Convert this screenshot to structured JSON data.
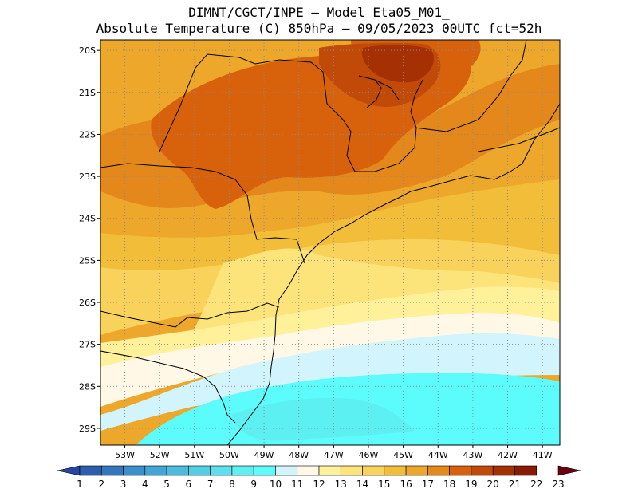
{
  "header": {
    "line1": "DIMNT/CGCT/INPE –  Model Eta05_M01_",
    "line2": "Absolute Temperature (C) 850hPa –  09/05/2023 00UTC fct=52h"
  },
  "map": {
    "lat_labels": [
      "20S",
      "21S",
      "22S",
      "23S",
      "24S",
      "25S",
      "26S",
      "27S",
      "28S",
      "29S"
    ],
    "lon_labels": [
      "53W",
      "52W",
      "51W",
      "50W",
      "49W",
      "48W",
      "47W",
      "46W",
      "45W",
      "44W",
      "43W",
      "42W",
      "41W"
    ],
    "lat_values": [
      -20,
      -21,
      -22,
      -23,
      -24,
      -25,
      -26,
      -27,
      -28,
      -29
    ],
    "lon_values": [
      -53,
      -52,
      -51,
      -50,
      -49,
      -48,
      -47,
      -46,
      -45,
      -44,
      -43,
      -42,
      -41
    ],
    "extent": {
      "lon_min": -53.7,
      "lon_max": -40.5,
      "lat_max": -19.75,
      "lat_min": -29.4
    },
    "field_desc": "850hPa temperature field; warm core (19-21C) over interior SP/MG, cooling to 9-11C over the ocean near 28-29S"
  },
  "colorbar": {
    "labels": [
      "1",
      "2",
      "3",
      "4",
      "5",
      "6",
      "7",
      "8",
      "9",
      "10",
      "11",
      "12",
      "13",
      "14",
      "15",
      "16",
      "17",
      "18",
      "19",
      "20",
      "21",
      "22",
      "23"
    ],
    "colors": [
      "#2546a0",
      "#2b5fae",
      "#3377bd",
      "#3a8fcc",
      "#41a5d6",
      "#4bbcdf",
      "#52cfe6",
      "#5ae0ee",
      "#5cf0f3",
      "#5cfcfc",
      "#d2f4fc",
      "#fff8e6",
      "#fff09a",
      "#fce37a",
      "#f8d25a",
      "#f2be3a",
      "#eda82c",
      "#e5881c",
      "#d8620c",
      "#c24a08",
      "#a53004",
      "#8a1a00",
      "#6a0010"
    ]
  }
}
